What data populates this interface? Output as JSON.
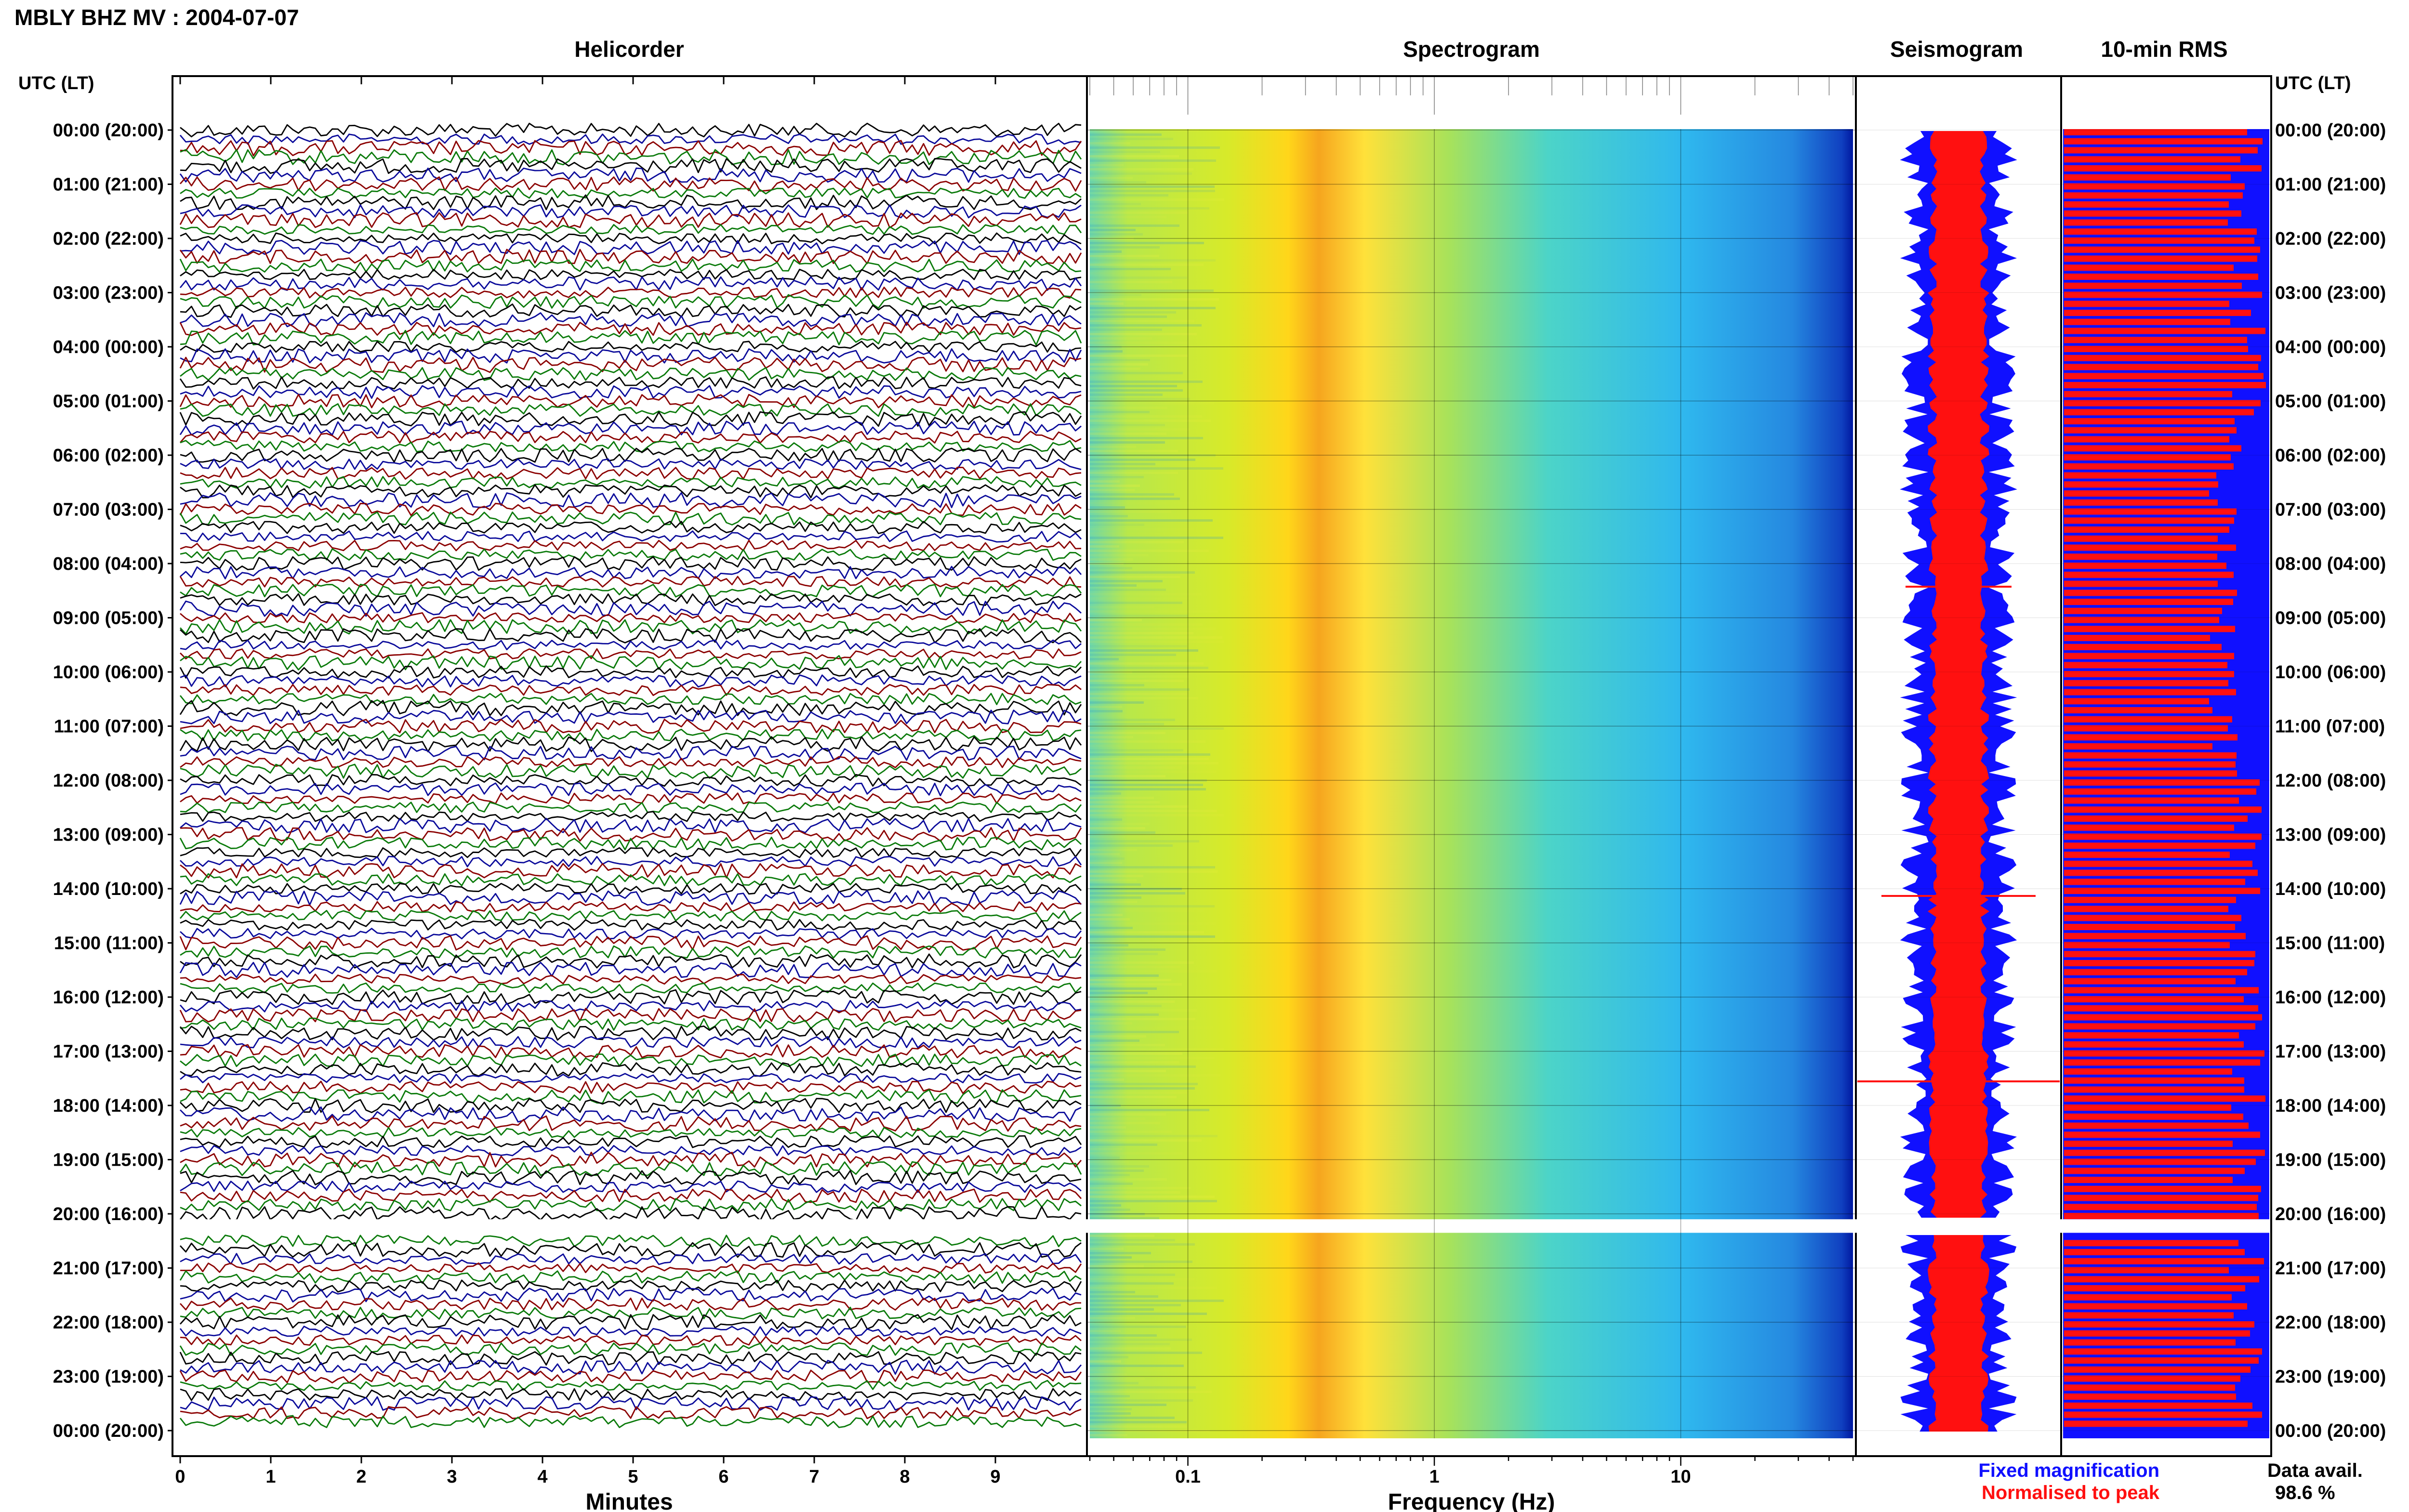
{
  "header": {
    "title": "MBLY BHZ MV : 2004-07-07"
  },
  "colors": {
    "trace_colors": [
      "#000000",
      "#0a0a9a",
      "#8b0000",
      "#0a7a0a"
    ],
    "fixed": "#1010ff",
    "normalised": "#ff1010",
    "frame": "#000000"
  },
  "chart_data": {
    "time_axis_label": "UTC (LT)",
    "time_ticks": [
      "00:00 (20:00)",
      "01:00 (21:00)",
      "02:00 (22:00)",
      "03:00 (23:00)",
      "04:00 (00:00)",
      "05:00 (01:00)",
      "06:00 (02:00)",
      "07:00 (03:00)",
      "08:00 (04:00)",
      "09:00 (05:00)",
      "10:00 (06:00)",
      "11:00 (07:00)",
      "12:00 (08:00)",
      "13:00 (09:00)",
      "14:00 (10:00)",
      "15:00 (11:00)",
      "16:00 (12:00)",
      "17:00 (13:00)",
      "18:00 (14:00)",
      "19:00 (15:00)",
      "20:00 (16:00)",
      "21:00 (17:00)",
      "22:00 (18:00)",
      "23:00 (19:00)",
      "00:00 (20:00)"
    ],
    "helicorder": {
      "title": "Helicorder",
      "xlabel": "Minutes",
      "xticks": [
        "0",
        "1",
        "2",
        "3",
        "4",
        "5",
        "6",
        "7",
        "8",
        "9"
      ],
      "xlim": [
        0,
        10
      ],
      "gap_hours": [
        20.1,
        20.35
      ]
    },
    "spectrogram": {
      "title": "Spectrogram",
      "xlabel": "Frequency (Hz)",
      "xticks": [
        "0.1",
        "1",
        "10"
      ],
      "xlim": [
        0.04,
        50
      ],
      "scale": "log",
      "peak_band_hz": [
        0.2,
        0.5
      ]
    },
    "seismogram": {
      "title": "Seismogram"
    },
    "rms": {
      "title": "10-min RMS",
      "data_avail_label": "Data avail.",
      "data_avail_value": "98.6 %"
    },
    "legend": {
      "fixed": "Fixed magnification",
      "normalised": "Normalised to peak"
    }
  }
}
